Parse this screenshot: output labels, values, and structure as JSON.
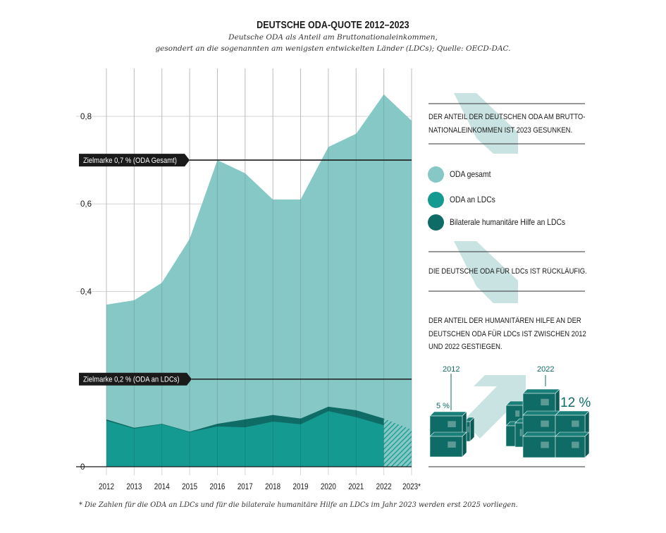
{
  "title": "DEUTSCHE ODA-QUOTE 2012–2023",
  "subtitle_line1": "Deutsche ODA als Anteil am Bruttonationaleinkommen,",
  "subtitle_line2": "gesondert an die sogenannten am wenigsten entwickelten Länder (LDCs); Quelle: OECD-DAC.",
  "footnote": "* Die Zahlen für die ODA an LDCs und für die bilaterale humanitäre Hilfe an LDCs im Jahr 2023 werden erst 2025 vorliegen.",
  "colors": {
    "oda_gesamt": "#86c8c6",
    "oda_ldc": "#149a90",
    "humanitarian": "#0f6b66",
    "arrow": "#c9e3e2",
    "marker": "#1a1a1a",
    "grid": "#d6d6d6"
  },
  "panel": {
    "statement1_line1": "DER ANTEIL DER DEUTSCHEN ODA AM BRUTTO-",
    "statement1_line2": "NATIONALEINKOMMEN IST 2023 GESUNKEN.",
    "statement2": "DIE DEUTSCHE ODA FÜR LDCs IST RÜCKLÄUFIG.",
    "statement3_line1": "DER ANTEIL DER HUMANITÄREN HILFE AN DER",
    "statement3_line2": "DEUTSCHEN ODA FÜR LDCs IST ZWISCHEN 2012",
    "statement3_line3": "UND 2022 GESTIEGEN.",
    "legend": [
      {
        "label": "ODA gesamt",
        "color": "#86c8c6"
      },
      {
        "label": "ODA an LDCs",
        "color": "#149a90"
      },
      {
        "label": "Bilaterale humanitäre Hilfe an LDCs",
        "color": "#0f6b66"
      }
    ],
    "boxes": {
      "year_left": "2012",
      "value_left": "5 %",
      "year_right": "2022",
      "value_right": "12 %"
    }
  },
  "chart_data": {
    "type": "area",
    "title": "DEUTSCHE ODA-QUOTE 2012–2023",
    "xlabel": "",
    "ylabel": "",
    "x": [
      "2012",
      "2013",
      "2014",
      "2015",
      "2016",
      "2017",
      "2018",
      "2019",
      "2020",
      "2021",
      "2022",
      "2023*"
    ],
    "ylim": [
      0,
      0.88
    ],
    "yticks": [
      0,
      0.4,
      0.6,
      0.8
    ],
    "ytick_labels": [
      "0",
      "0,4",
      "0,6",
      "0,8"
    ],
    "grid": true,
    "series": [
      {
        "name": "ODA gesamt",
        "values": [
          0.37,
          0.38,
          0.42,
          0.52,
          0.7,
          0.67,
          0.61,
          0.61,
          0.73,
          0.76,
          0.85,
          0.79
        ]
      },
      {
        "name": "Bilaterale humanitäre Hilfe an LDCs (Obergrenze, gestapelt)",
        "values": [
          0.108,
          0.089,
          0.098,
          0.08,
          0.098,
          0.108,
          0.118,
          0.11,
          0.137,
          0.129,
          0.11,
          null
        ]
      },
      {
        "name": "ODA an LDCs",
        "values": [
          0.105,
          0.087,
          0.097,
          0.079,
          0.092,
          0.09,
          0.103,
          0.097,
          0.127,
          0.113,
          0.095,
          null
        ]
      }
    ],
    "estimate_2023_ldc_hatched": 0.085,
    "reference_lines": [
      {
        "label": "Zielmarke 0,7 % (ODA Gesamt)",
        "value": 0.7
      },
      {
        "label": "Zielmarke 0,2 % (ODA an LDCs)",
        "value": 0.2
      }
    ],
    "legend": [
      "ODA gesamt",
      "ODA an LDCs",
      "Bilaterale humanitäre Hilfe an LDCs"
    ],
    "legend_position": "right"
  }
}
